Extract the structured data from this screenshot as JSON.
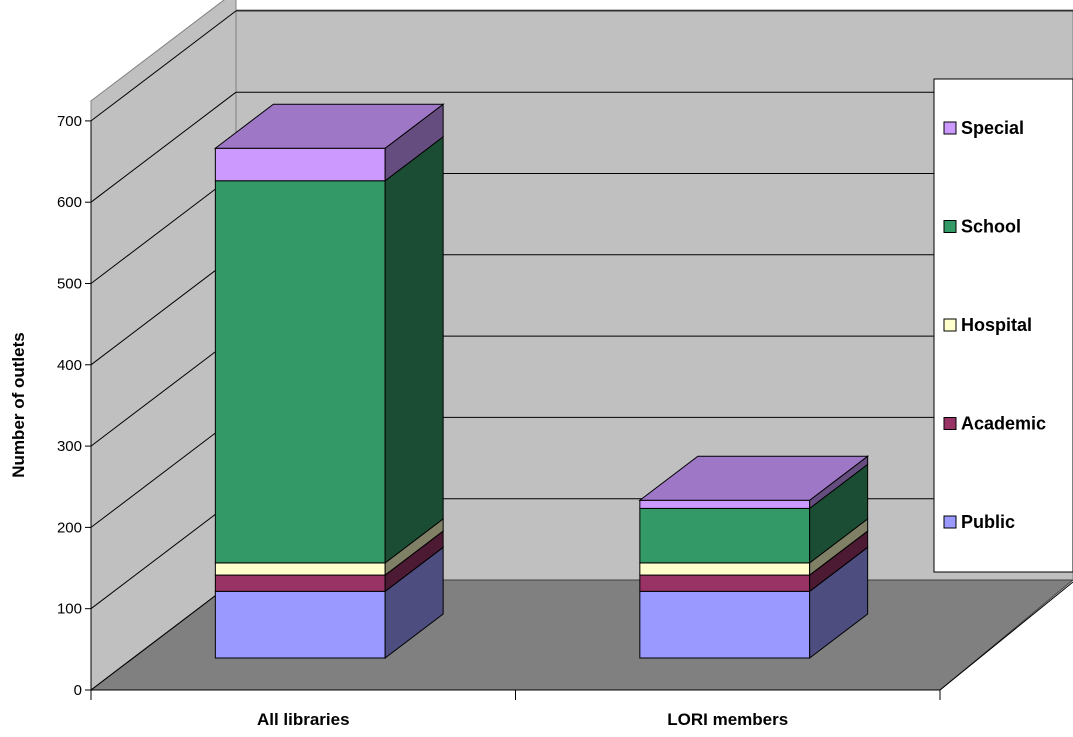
{
  "chart_data": {
    "type": "bar",
    "stacked": true,
    "three_d": true,
    "categories": [
      "All libraries",
      "LORI members"
    ],
    "series": [
      {
        "name": "Public",
        "values": [
          82,
          82
        ],
        "color": "#9999ff"
      },
      {
        "name": "Academic",
        "values": [
          20,
          20
        ],
        "color": "#993366"
      },
      {
        "name": "Hospital",
        "values": [
          15,
          15
        ],
        "color": "#ffffcc"
      },
      {
        "name": "School",
        "values": [
          470,
          67
        ],
        "color": "#339966"
      },
      {
        "name": "Special",
        "values": [
          40,
          10
        ],
        "color": "#cc99ff"
      }
    ],
    "ylabel": "Number of outlets",
    "xlabel": "",
    "ylim": [
      0,
      700
    ],
    "yticks": [
      "0",
      "100",
      "200",
      "300",
      "400",
      "500",
      "600",
      "700"
    ],
    "grid": true,
    "legend_position": "right",
    "wall_color": "#c0c0c0",
    "floor_color": "#808080"
  }
}
